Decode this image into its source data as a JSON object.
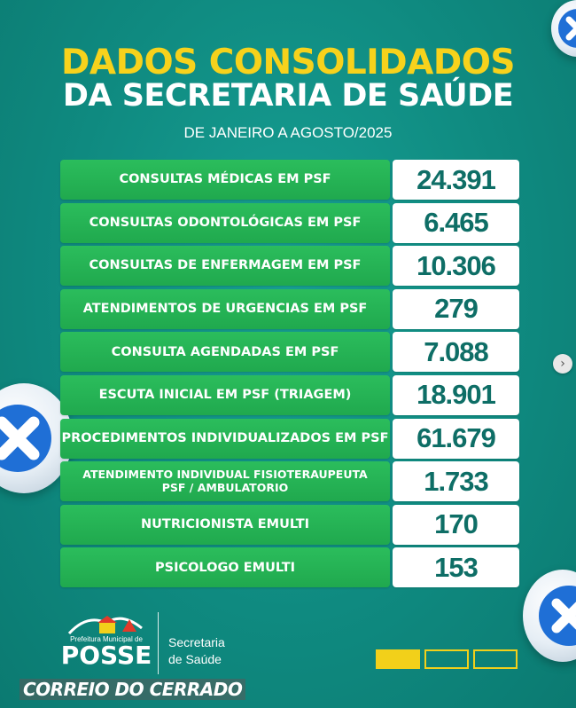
{
  "header": {
    "title_line1": "DADOS CONSOLIDADOS",
    "title_line2": "DA SECRETARIA DE SAÚDE",
    "subtitle": "DE JANEIRO A AGOSTO/2025"
  },
  "rows": [
    {
      "label": "CONSULTAS MÉDICAS EM PSF",
      "value": "24.391"
    },
    {
      "label": "CONSULTAS ODONTOLÓGICAS EM PSF",
      "value": "6.465"
    },
    {
      "label": "CONSULTAS DE ENFERMAGEM EM PSF",
      "value": "10.306"
    },
    {
      "label": "ATENDIMENTOS DE URGENCIAS EM PSF",
      "value": "279"
    },
    {
      "label": "CONSULTA AGENDADAS EM PSF",
      "value": "7.088"
    },
    {
      "label": "ESCUTA INICIAL EM PSF (TRIAGEM)",
      "value": "18.901"
    },
    {
      "label": "PROCEDIMENTOS INDIVIDUALIZADOS EM PSF",
      "value": "61.679"
    },
    {
      "label": "ATENDIMENTO INDIVIDUAL FISIOTERAUPEUTA PSF / AMBULATORIO",
      "value": "1.733"
    },
    {
      "label": "NUTRICIONISTA EMULTI",
      "value": "170"
    },
    {
      "label": "PSICOLOGO EMULTI",
      "value": "153"
    }
  ],
  "footer": {
    "logo_prefix": "Prefeitura Municipal de",
    "logo_name": "POSSE",
    "secretaria_line1": "Secretaria",
    "secretaria_line2": "de Saúde",
    "watermark": "CORREIO DO CERRADO"
  },
  "carousel": {
    "next_icon": "chevron-right-icon",
    "page_indicators": 3,
    "active_index": 0
  },
  "colors": {
    "background": "#11958a",
    "title_yellow": "#f7d21c",
    "row_green": "#25b356",
    "value_text": "#0e6e66",
    "indicator_yellow": "#f2d01a"
  }
}
